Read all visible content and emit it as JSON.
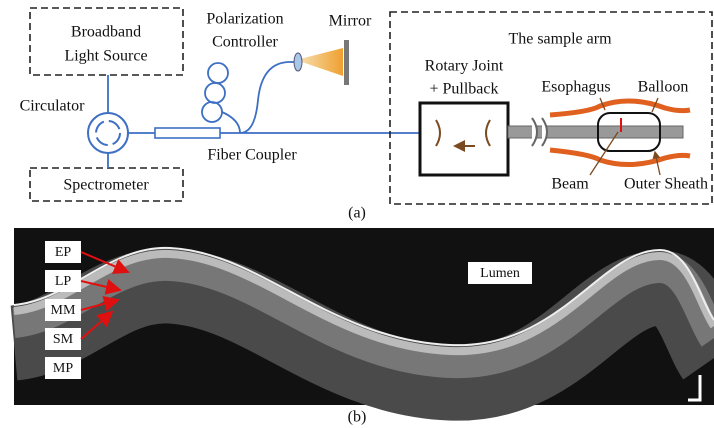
{
  "panel_a": {
    "caption": "(a)",
    "light_source": [
      "Broadband",
      "Light Source"
    ],
    "circulator": "Circulator",
    "spectrometer": "Spectrometer",
    "polarization_controller": [
      "Polarization",
      "Controller"
    ],
    "mirror": "Mirror",
    "fiber_coupler": "Fiber Coupler",
    "sample_arm": {
      "title": "The sample arm",
      "rotary_joint": [
        "Rotary Joint",
        "+ Pullback"
      ],
      "esophagus": "Esophagus",
      "balloon": "Balloon",
      "beam": "Beam",
      "outer_sheath": "Outer Sheath"
    }
  },
  "panel_b": {
    "caption": "(b)",
    "lumen": "Lumen",
    "layers": [
      "EP",
      "LP",
      "MM",
      "SM",
      "MP"
    ]
  }
}
